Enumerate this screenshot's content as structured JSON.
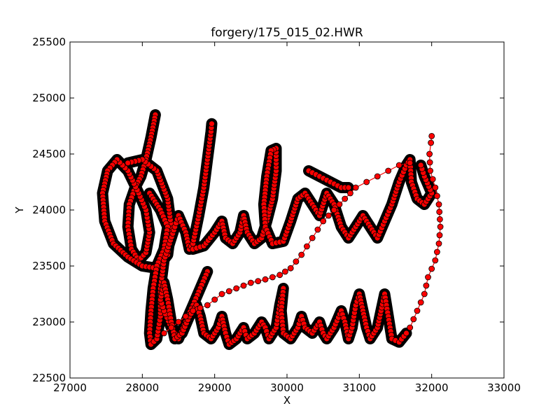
{
  "chart_data": {
    "type": "scatter",
    "title": "forgery/175_015_02.HWR",
    "xlabel": "X",
    "ylabel": "Y",
    "xlim": [
      27000,
      33000
    ],
    "ylim": [
      22500,
      25500
    ],
    "xticks": [
      27000,
      28000,
      29000,
      30000,
      31000,
      32000,
      33000
    ],
    "yticks": [
      22500,
      23000,
      23500,
      24000,
      24500,
      25000,
      25500
    ],
    "grid": false,
    "series_style": {
      "marker": "circle",
      "marker_fill": "#ff0000",
      "marker_edge": "#000000",
      "line_color": "#ff0000",
      "pressure_halo_color": "#000000"
    },
    "strokes": [
      [
        [
          28180,
          24850
        ],
        [
          28120,
          24650
        ],
        [
          28050,
          24450
        ],
        [
          27980,
          24300
        ],
        [
          27900,
          24200
        ],
        [
          27820,
          24050
        ],
        [
          27800,
          23850
        ],
        [
          27850,
          23650
        ],
        [
          27950,
          23550
        ],
        [
          28050,
          23620
        ],
        [
          28100,
          23800
        ],
        [
          28050,
          24000
        ],
        [
          27950,
          24150
        ],
        [
          27800,
          24350
        ],
        [
          27650,
          24450
        ],
        [
          27520,
          24350
        ],
        [
          27450,
          24150
        ],
        [
          27480,
          23900
        ],
        [
          27600,
          23700
        ],
        [
          27800,
          23580
        ],
        [
          28000,
          23500
        ],
        [
          28200,
          23480
        ],
        [
          28350,
          23600
        ],
        [
          28400,
          23850
        ],
        [
          28350,
          24100
        ],
        [
          28200,
          24350
        ],
        [
          28000,
          24450
        ],
        [
          27800,
          24420
        ]
      ],
      [
        [
          28100,
          24150
        ],
        [
          28250,
          24000
        ],
        [
          28350,
          23850
        ],
        [
          28300,
          23650
        ],
        [
          28200,
          23500
        ],
        [
          28150,
          23300
        ],
        [
          28120,
          23100
        ],
        [
          28100,
          22900
        ],
        [
          28120,
          22800
        ],
        [
          28200,
          22850
        ],
        [
          28250,
          23050
        ],
        [
          28250,
          23300
        ],
        [
          28300,
          23550
        ],
        [
          28450,
          23850
        ],
        [
          28500,
          23950
        ],
        [
          28600,
          23800
        ],
        [
          28650,
          23650
        ],
        [
          28700,
          23700
        ],
        [
          28780,
          23950
        ],
        [
          28850,
          24200
        ],
        [
          28900,
          24450
        ],
        [
          28950,
          24700
        ],
        [
          28960,
          24770
        ]
      ],
      [
        [
          28700,
          23650
        ],
        [
          28850,
          23680
        ],
        [
          29000,
          23800
        ],
        [
          29100,
          23900
        ],
        [
          29150,
          23750
        ],
        [
          29250,
          23700
        ],
        [
          29350,
          23800
        ],
        [
          29400,
          23950
        ],
        [
          29450,
          23800
        ],
        [
          29550,
          23700
        ],
        [
          29650,
          23750
        ],
        [
          29720,
          23900
        ],
        [
          29800,
          24100
        ],
        [
          29850,
          24350
        ],
        [
          29850,
          24550
        ],
        [
          29780,
          24530
        ],
        [
          29720,
          24300
        ],
        [
          29680,
          24050
        ],
        [
          29700,
          23850
        ],
        [
          29800,
          23700
        ],
        [
          29950,
          23720
        ],
        [
          30050,
          23900
        ],
        [
          30150,
          24100
        ],
        [
          30250,
          24150
        ],
        [
          30350,
          24050
        ],
        [
          30450,
          23950
        ],
        [
          30550,
          24150
        ],
        [
          30650,
          24050
        ],
        [
          30750,
          23850
        ],
        [
          30850,
          23750
        ],
        [
          30950,
          23850
        ],
        [
          31050,
          23950
        ],
        [
          31150,
          23850
        ],
        [
          31250,
          23750
        ],
        [
          31350,
          23900
        ],
        [
          31450,
          24050
        ],
        [
          31550,
          24250
        ],
        [
          31650,
          24400
        ],
        [
          31700,
          24450
        ],
        [
          31720,
          24250
        ],
        [
          31800,
          24100
        ],
        [
          31900,
          24050
        ],
        [
          32000,
          24150
        ],
        [
          31900,
          24300
        ],
        [
          31850,
          24400
        ]
      ],
      [
        [
          30300,
          24350
        ],
        [
          30450,
          24300
        ],
        [
          30600,
          24250
        ],
        [
          30750,
          24200
        ],
        [
          30850,
          24200
        ]
      ],
      [
        [
          28900,
          23450
        ],
        [
          28800,
          23300
        ],
        [
          28700,
          23150
        ],
        [
          28600,
          23000
        ],
        [
          28500,
          22850
        ],
        [
          28400,
          22950
        ],
        [
          28300,
          23100
        ],
        [
          28250,
          23200
        ],
        [
          28300,
          23350
        ],
        [
          28350,
          23200
        ],
        [
          28400,
          23000
        ],
        [
          28450,
          22850
        ],
        [
          28550,
          22900
        ],
        [
          28650,
          23050
        ],
        [
          28750,
          23150
        ],
        [
          28800,
          23050
        ],
        [
          28850,
          22900
        ],
        [
          28950,
          22850
        ],
        [
          29050,
          22950
        ],
        [
          29100,
          23050
        ],
        [
          29150,
          22900
        ],
        [
          29200,
          22800
        ],
        [
          29300,
          22850
        ],
        [
          29400,
          22950
        ],
        [
          29450,
          22850
        ],
        [
          29550,
          22900
        ],
        [
          29650,
          23000
        ],
        [
          29700,
          22950
        ],
        [
          29750,
          22850
        ],
        [
          29850,
          22950
        ],
        [
          29900,
          23150
        ],
        [
          29950,
          23300
        ],
        [
          29920,
          23100
        ],
        [
          29950,
          22900
        ],
        [
          30050,
          22850
        ],
        [
          30150,
          22950
        ],
        [
          30200,
          23050
        ],
        [
          30250,
          22950
        ],
        [
          30350,
          22900
        ],
        [
          30450,
          23000
        ],
        [
          30500,
          22900
        ],
        [
          30550,
          22850
        ],
        [
          30650,
          22950
        ],
        [
          30750,
          23100
        ],
        [
          30800,
          23000
        ],
        [
          30850,
          22850
        ],
        [
          30900,
          22950
        ],
        [
          30950,
          23150
        ],
        [
          31000,
          23250
        ],
        [
          31050,
          23100
        ],
        [
          31100,
          22950
        ],
        [
          31150,
          22850
        ],
        [
          31250,
          22950
        ],
        [
          31300,
          23100
        ],
        [
          31350,
          23250
        ],
        [
          31400,
          23050
        ],
        [
          31450,
          22850
        ],
        [
          31550,
          22820
        ],
        [
          31650,
          22900
        ]
      ],
      [
        [
          28300,
          22900
        ],
        [
          28500,
          23000
        ],
        [
          28700,
          23100
        ],
        [
          28900,
          23150
        ],
        [
          29100,
          23250
        ],
        [
          29300,
          23300
        ],
        [
          29500,
          23350
        ],
        [
          29700,
          23380
        ],
        [
          29900,
          23420
        ],
        [
          30050,
          23480
        ],
        [
          30200,
          23600
        ],
        [
          30350,
          23750
        ],
        [
          30500,
          23900
        ],
        [
          30650,
          24000
        ],
        [
          30800,
          24100
        ],
        [
          30950,
          24200
        ],
        [
          31100,
          24250
        ],
        [
          31250,
          24300
        ],
        [
          31400,
          24350
        ],
        [
          31550,
          24400
        ],
        [
          31700,
          24420
        ]
      ],
      [
        [
          31700,
          22950
        ],
        [
          31800,
          23100
        ],
        [
          31900,
          23250
        ],
        [
          31950,
          23400
        ],
        [
          32050,
          23550
        ],
        [
          32100,
          23700
        ],
        [
          32120,
          23850
        ],
        [
          32100,
          24050
        ],
        [
          32050,
          24200
        ],
        [
          31980,
          24350
        ],
        [
          31970,
          24500
        ],
        [
          31990,
          24600
        ],
        [
          32000,
          24660
        ]
      ]
    ]
  }
}
